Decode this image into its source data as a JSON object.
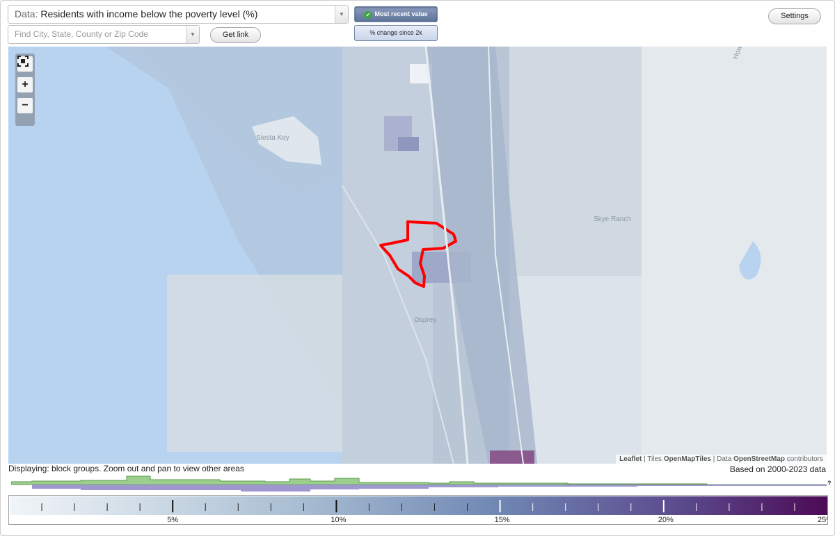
{
  "data_select": {
    "prefix": "Data:",
    "value": "Residents with income below the poverty level (%)"
  },
  "find": {
    "placeholder": "Find City, State, County or Zip Code"
  },
  "buttons": {
    "get_link": "Get link",
    "most_recent": "Most recent value",
    "pct_change": "% change since 2k",
    "settings": "Settings"
  },
  "zoom": {
    "fullscreen_icon": "fullscreen-icon",
    "plus": "+",
    "minus": "−"
  },
  "map_labels": {
    "siesta_key": "Siesta Key",
    "osprey": "Osprey",
    "skye_ranch": "Skye Ranch",
    "howard_creek": "Howard Cr"
  },
  "attribution": {
    "leaflet": "Leaflet",
    "sep1": " | Tiles ",
    "tiles": "OpenMapTiles",
    "sep2": " | Data ",
    "data": "OpenStreetMap",
    "tail": " contributors"
  },
  "status": {
    "displaying": "Displaying: block groups. Zoom out and pan to view other areas",
    "based_on": "Based on 2000-2023 data"
  },
  "histogram": {
    "help": "?"
  },
  "legend": {
    "ticks": [
      {
        "label": "5%",
        "value": 5
      },
      {
        "label": "10%",
        "value": 10
      },
      {
        "label": "15%",
        "value": 15
      },
      {
        "label": "20%",
        "value": 20
      },
      {
        "label": "25%",
        "value": 25
      }
    ],
    "min": 0,
    "max": 25,
    "colors": {
      "low": "#f1f5f8",
      "mid": "#6f86b3",
      "high": "#4c0a55"
    }
  },
  "colors": {
    "water": "#b8d3ef",
    "land": "#e8ecef",
    "highlight": "#ff0000",
    "histogram_green": "#9ccf8e",
    "histogram_purple": "#9e98cf"
  }
}
